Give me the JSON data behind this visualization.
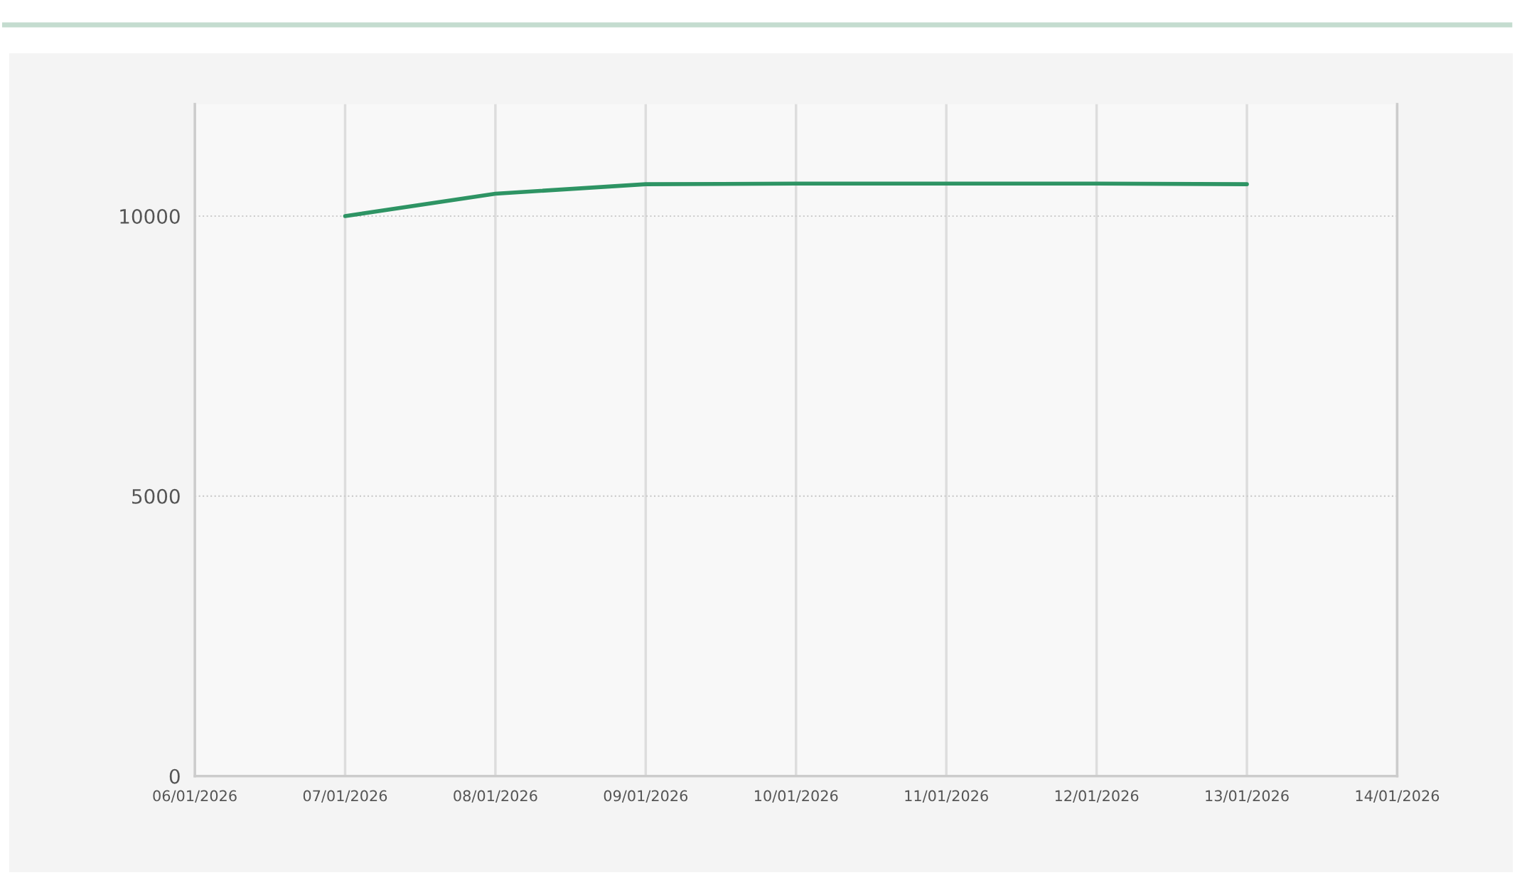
{
  "chart_data": {
    "type": "line",
    "x": [
      "2026-01-07",
      "2026-01-08",
      "2026-01-09",
      "2026-01-10",
      "2026-01-11",
      "2026-01-12",
      "2026-01-13"
    ],
    "series": [
      {
        "color": "#2e9464",
        "values": [
          10000,
          10400,
          10570,
          10580,
          10580,
          10580,
          10570
        ]
      }
    ],
    "xlim": [
      "2026-01-06",
      "2026-01-14"
    ],
    "xticks": [
      {
        "value": "2026-01-06",
        "label": "06/01/2026"
      },
      {
        "value": "2026-01-07",
        "label": "07/01/2026"
      },
      {
        "value": "2026-01-08",
        "label": "08/01/2026"
      },
      {
        "value": "2026-01-09",
        "label": "09/01/2026"
      },
      {
        "value": "2026-01-10",
        "label": "10/01/2026"
      },
      {
        "value": "2026-01-11",
        "label": "11/01/2026"
      },
      {
        "value": "2026-01-12",
        "label": "12/01/2026"
      },
      {
        "value": "2026-01-13",
        "label": "13/01/2026"
      },
      {
        "value": "2026-01-14",
        "label": "14/01/2026"
      }
    ],
    "ylim": [
      0,
      12000
    ],
    "yticks": [
      0,
      5000,
      10000
    ],
    "grid": true,
    "legend": false,
    "marker": "none",
    "line_style": "solid"
  }
}
